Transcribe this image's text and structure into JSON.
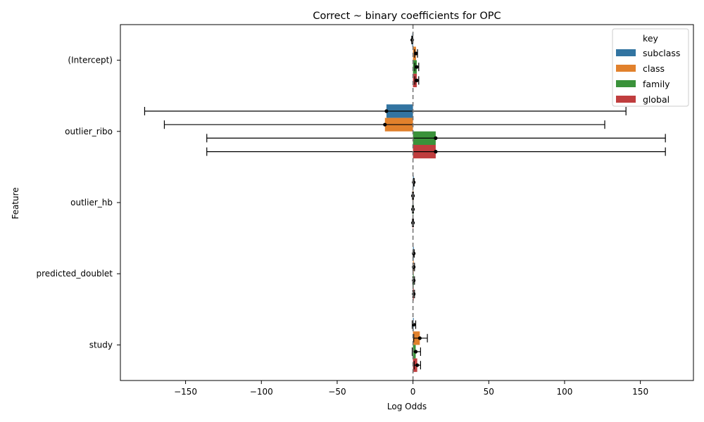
{
  "chart_data": {
    "type": "bar",
    "orientation": "horizontal",
    "title": "Correct ~ binary coefficients for OPC",
    "xlabel": "Log Odds",
    "ylabel": "Feature",
    "xlim": [
      -193,
      185
    ],
    "xticks": [
      -150,
      -100,
      -50,
      0,
      50,
      100,
      150
    ],
    "xtick_labels": [
      "−150",
      "−100",
      "−50",
      "0",
      "50",
      "100",
      "150"
    ],
    "reference_line": {
      "x": 0,
      "style": "dashed"
    },
    "categories": [
      "(Intercept)",
      "outlier_ribo",
      "outlier_hb",
      "predicted_doublet",
      "study"
    ],
    "legend": {
      "title": "key",
      "position": "top-right"
    },
    "series": [
      {
        "name": "subclass",
        "color": "#3274a1",
        "values": [
          -0.5,
          -17.5,
          0.5,
          0.5,
          0.5
        ],
        "ci_low": [
          -0.8,
          -177,
          0.3,
          0.2,
          -0.5
        ],
        "ci_high": [
          -0.2,
          140.5,
          0.8,
          0.8,
          1.8
        ]
      },
      {
        "name": "class",
        "color": "#e1812c",
        "values": [
          2.0,
          -18.5,
          0.0,
          0.5,
          4.5
        ],
        "ci_low": [
          1.0,
          -164,
          -0.3,
          0.1,
          0.5
        ],
        "ci_high": [
          3.0,
          126.5,
          0.3,
          1.0,
          9.5
        ]
      },
      {
        "name": "family",
        "color": "#3a923a",
        "values": [
          2.5,
          15.0,
          0.0,
          0.5,
          1.8
        ],
        "ci_low": [
          1.2,
          -136,
          -0.3,
          0.0,
          -0.5
        ],
        "ci_high": [
          3.8,
          166.5,
          0.3,
          1.0,
          5.0
        ]
      },
      {
        "name": "global",
        "color": "#c03d3e",
        "values": [
          2.5,
          15.0,
          0.0,
          0.5,
          2.8
        ],
        "ci_low": [
          1.2,
          -136,
          -0.3,
          0.0,
          0.8
        ],
        "ci_high": [
          3.8,
          166.5,
          0.3,
          1.0,
          5.0
        ]
      }
    ]
  }
}
